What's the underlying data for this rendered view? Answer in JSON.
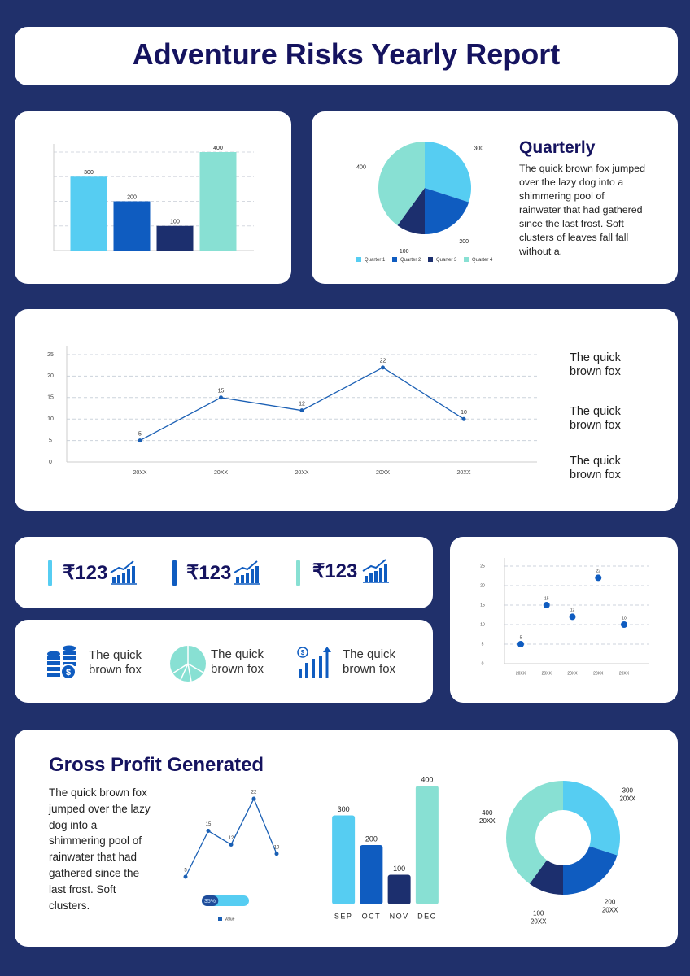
{
  "title": "Adventure Risks Yearly Report",
  "quarterly": {
    "heading": "Quarterly",
    "text": "The quick brown fox jumped over the lazy dog into a shimmering pool of rainwater that had gathered since the last frost. Soft clusters of leaves fall  fall without a."
  },
  "side_notes": [
    "The quick brown fox",
    "The quick brown fox",
    "The quick brown fox"
  ],
  "stats": [
    "₹123",
    "₹123",
    "₹123"
  ],
  "features": [
    "The quick brown fox",
    "The quick brown fox",
    "The quick brown fox"
  ],
  "gross_profit": {
    "heading": "Gross Profit Generated",
    "text": "The quick brown fox jumped over the lazy dog into a shimmering pool of rainwater that had gathered since the last frost. Soft clusters."
  },
  "chart_data": [
    {
      "type": "bar",
      "values": [
        300,
        200,
        100,
        400
      ],
      "colors": [
        "#56cdf2",
        "#0f5cc0",
        "#1c2f6e",
        "#88e0d3"
      ],
      "ylim": [
        0,
        400
      ],
      "grid": true
    },
    {
      "type": "pie",
      "categories": [
        "Quarter 1",
        "Quarter 2",
        "Quarter 3",
        "Quarter 4"
      ],
      "values": [
        300,
        200,
        100,
        400
      ],
      "colors": [
        "#56cdf2",
        "#0f5cc0",
        "#1c2f6e",
        "#88e0d3"
      ]
    },
    {
      "type": "line",
      "categories": [
        "20XX",
        "20XX",
        "20XX",
        "20XX",
        "20XX"
      ],
      "values": [
        5,
        15,
        12,
        22,
        10
      ],
      "color": "#1a5fb4",
      "ylim": [
        0,
        25
      ],
      "yticks": [
        0,
        5,
        10,
        15,
        20,
        25
      ],
      "grid": true
    },
    {
      "type": "scatter",
      "categories": [
        "20XX",
        "20XX",
        "20XX",
        "20XX",
        "20XX"
      ],
      "values": [
        5,
        15,
        12,
        22,
        10
      ],
      "color": "#0f5cc0",
      "ylim": [
        0,
        25
      ],
      "yticks": [
        0,
        5,
        10,
        15,
        20,
        25
      ],
      "grid": true
    },
    {
      "type": "line",
      "series": [
        {
          "name": "Value",
          "color": "#1a5fb4",
          "values": [
            5,
            15,
            12,
            22,
            10
          ]
        }
      ]
    },
    {
      "type": "progress",
      "value": 35,
      "label": "35%",
      "color": "#1f4c9a",
      "track_color": "#56cdf2"
    },
    {
      "type": "bar",
      "categories": [
        "SEP",
        "OCT",
        "NOV",
        "DEC"
      ],
      "values": [
        300,
        200,
        100,
        400
      ],
      "colors": [
        "#56cdf2",
        "#0f5cc0",
        "#1c2f6e",
        "#88e0d3"
      ],
      "ylim": [
        0,
        400
      ]
    },
    {
      "type": "donut",
      "categories": [
        "20XX",
        "20XX",
        "20XX",
        "20XX"
      ],
      "values": [
        300,
        200,
        100,
        400
      ],
      "colors": [
        "#56cdf2",
        "#0f5cc0",
        "#1c2f6e",
        "#88e0d3"
      ]
    }
  ]
}
